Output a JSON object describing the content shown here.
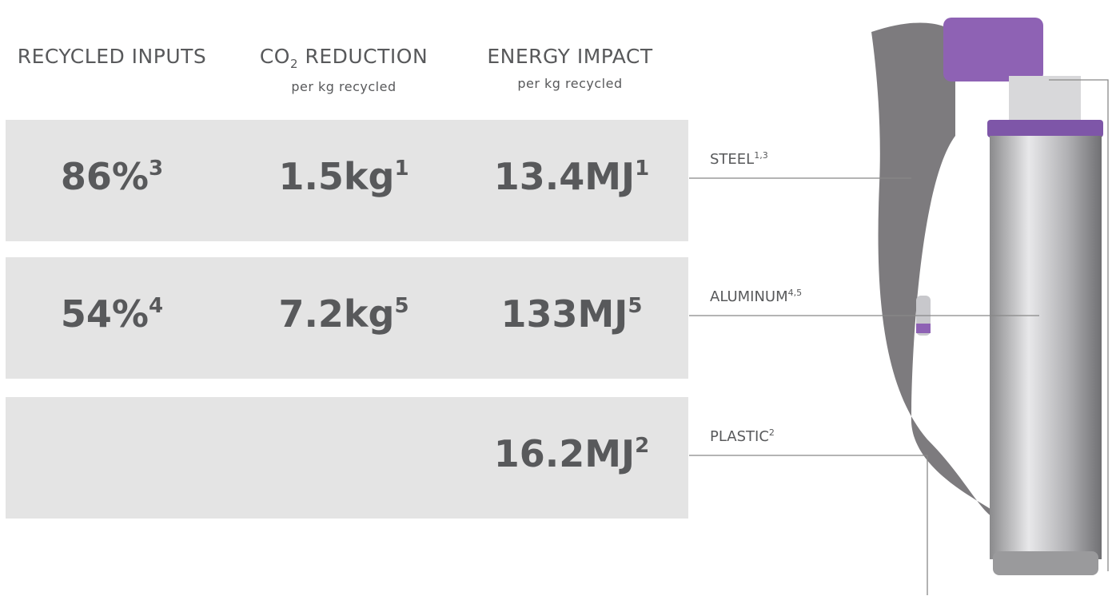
{
  "headers": [
    {
      "title": "RECYCLED INPUTS"
    },
    {
      "title": "CO",
      "subscript": "2",
      "title_rest": " REDUCTION",
      "note": "per kg recycled"
    },
    {
      "title": "ENERGY IMPACT",
      "note": "per kg recycled"
    }
  ],
  "rows": [
    {
      "cells": [
        {
          "value": "86%",
          "sup": "3"
        },
        {
          "value": "1.5kg",
          "sup": "1"
        },
        {
          "value": "13.4MJ",
          "sup": "1"
        }
      ],
      "label": {
        "text": "STEEL",
        "sup": "1,3"
      }
    },
    {
      "cells": [
        {
          "value": "54%",
          "sup": "4"
        },
        {
          "value": "7.2kg",
          "sup": "5"
        },
        {
          "value": "133MJ",
          "sup": "5"
        }
      ],
      "label": {
        "text": "ALUMINUM",
        "sup": "4,5"
      }
    },
    {
      "cells": [
        null,
        null,
        {
          "value": "16.2MJ",
          "sup": "2"
        }
      ],
      "label": {
        "text": "PLASTIC",
        "sup": "2"
      }
    }
  ]
}
